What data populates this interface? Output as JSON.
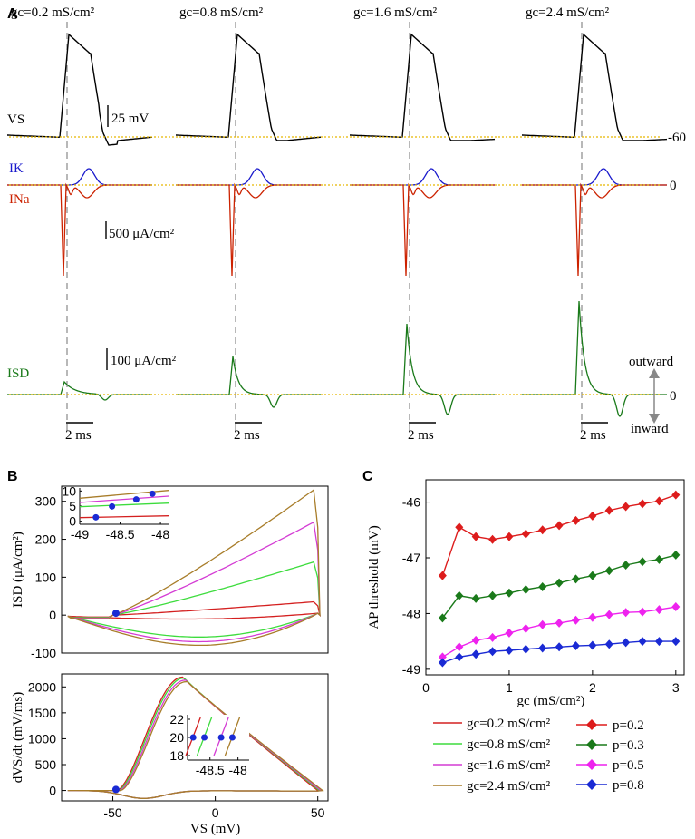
{
  "panel_labels": {
    "a": "A",
    "b": "B",
    "c": "C"
  },
  "panelA": {
    "conditions": [
      {
        "gc": 0.2,
        "title": "gc=0.2 mS/cm²"
      },
      {
        "gc": 0.8,
        "title": "gc=0.8 mS/cm²"
      },
      {
        "gc": 1.6,
        "title": "gc=1.6 mS/cm²"
      },
      {
        "gc": 2.4,
        "title": "gc=2.4 mS/cm²"
      }
    ],
    "trace_labels": {
      "vs": "VS",
      "ik": "IK",
      "ina": "INa",
      "isd": "ISD"
    },
    "scalebars": {
      "voltage": "25 mV",
      "current_ion": "500 μA/cm²",
      "current_sd": "100 μA/cm²",
      "time": "2 ms"
    },
    "reference_values": {
      "vs": "-60",
      "ik_ina": "0",
      "isd": "0"
    },
    "direction": {
      "outward": "outward",
      "inward": "inward"
    },
    "colors": {
      "vs": "#000000",
      "ik": "#1a1acc",
      "ina": "#cc2200",
      "isd": "#1a7a1a",
      "ref": "#e8b800",
      "dash": "#888888"
    }
  },
  "chart_data": [
    {
      "id": "B_top",
      "type": "line",
      "xlabel": "",
      "ylabel": "ISD (μA/cm²)",
      "xlim": [
        -75,
        55
      ],
      "ylim": [
        -100,
        340
      ],
      "yticks": [
        -100,
        0,
        100,
        200,
        300
      ],
      "series": [
        {
          "name": "gc=0.2 mS/cm²",
          "color": "#d42020",
          "peak": 35,
          "trough": -12
        },
        {
          "name": "gc=0.8 mS/cm²",
          "color": "#3ddc3d",
          "peak": 140,
          "trough": -62
        },
        {
          "name": "gc=1.6 mS/cm²",
          "color": "#d43cd4",
          "peak": 245,
          "trough": -75
        },
        {
          "name": "gc=2.4 mS/cm²",
          "color": "#a87d2a",
          "peak": 330,
          "trough": -85
        }
      ],
      "threshold_points": {
        "color": "#1a2ad4",
        "x": [
          -48.8,
          -48.6,
          -48.3,
          -48.1
        ],
        "y": [
          2,
          4,
          7,
          9
        ]
      },
      "inset": {
        "xlim": [
          -49,
          -47.9
        ],
        "ylim": [
          -1,
          11
        ],
        "xticks": [
          -49,
          -48.5,
          -48
        ],
        "yticks": [
          0,
          5,
          10
        ],
        "xticklabels": [
          "-49",
          "-48.5",
          "-48"
        ]
      }
    },
    {
      "id": "B_bottom",
      "type": "line",
      "xlabel": "VS (mV)",
      "ylabel": "dVS/dt (mV/ms)",
      "xlim": [
        -75,
        55
      ],
      "ylim": [
        -200,
        2250
      ],
      "xticks": [
        -50,
        0,
        50
      ],
      "yticks": [
        0,
        500,
        1000,
        1500,
        2000
      ],
      "series": [
        {
          "name": "gc=0.2 mS/cm²",
          "color": "#d42020",
          "peak": 2190
        },
        {
          "name": "gc=0.8 mS/cm²",
          "color": "#3ddc3d",
          "peak": 2170
        },
        {
          "name": "gc=1.6 mS/cm²",
          "color": "#d43cd4",
          "peak": 2130
        },
        {
          "name": "gc=2.4 mS/cm²",
          "color": "#a87d2a",
          "peak": 2100
        }
      ],
      "threshold_points": {
        "color": "#1a2ad4",
        "x": [
          -48.8,
          -48.6,
          -48.3,
          -48.1
        ],
        "y": [
          20,
          20,
          20,
          20
        ]
      },
      "inset": {
        "xlim": [
          -48.9,
          -47.8
        ],
        "ylim": [
          17.5,
          22.5
        ],
        "xticks": [
          -48.5,
          -48
        ],
        "yticks": [
          18,
          20,
          22
        ],
        "xticklabels": [
          "-48.5",
          "-48"
        ]
      }
    },
    {
      "id": "C",
      "type": "line",
      "xlabel": "gc (mS/cm²)",
      "ylabel": "AP threshold (mV)",
      "xlim": [
        0,
        3.1
      ],
      "ylim": [
        -49.1,
        -45.6
      ],
      "xticks": [
        0,
        1,
        2,
        3
      ],
      "yticks": [
        -49,
        -48,
        -47,
        -46
      ],
      "x": [
        0.2,
        0.4,
        0.6,
        0.8,
        1.0,
        1.2,
        1.4,
        1.6,
        1.8,
        2.0,
        2.2,
        2.4,
        2.6,
        2.8,
        3.0
      ],
      "series": [
        {
          "name": "p=0.2",
          "color": "#dd1c1c",
          "values": [
            -47.32,
            -46.45,
            -46.62,
            -46.67,
            -46.62,
            -46.57,
            -46.5,
            -46.42,
            -46.33,
            -46.25,
            -46.15,
            -46.08,
            -46.03,
            -45.98,
            -45.87
          ]
        },
        {
          "name": "p=0.3",
          "color": "#1a7a1a",
          "values": [
            -48.08,
            -47.68,
            -47.73,
            -47.68,
            -47.63,
            -47.57,
            -47.52,
            -47.45,
            -47.38,
            -47.32,
            -47.23,
            -47.13,
            -47.07,
            -47.03,
            -46.95
          ]
        },
        {
          "name": "p=0.5",
          "color": "#ee22ee",
          "values": [
            -48.78,
            -48.6,
            -48.48,
            -48.43,
            -48.35,
            -48.27,
            -48.2,
            -48.17,
            -48.12,
            -48.07,
            -48.02,
            -47.98,
            -47.97,
            -47.93,
            -47.88
          ]
        },
        {
          "name": "p=0.8",
          "color": "#1a2ad4",
          "values": [
            -48.88,
            -48.78,
            -48.73,
            -48.68,
            -48.66,
            -48.64,
            -48.62,
            -48.6,
            -48.58,
            -48.57,
            -48.55,
            -48.52,
            -48.5,
            -48.5,
            -48.5
          ]
        }
      ]
    }
  ],
  "legend": {
    "gc_entries": [
      {
        "label": "gc=0.2 mS/cm²",
        "color": "#d42020"
      },
      {
        "label": "gc=0.8 mS/cm²",
        "color": "#3ddc3d"
      },
      {
        "label": "gc=1.6 mS/cm²",
        "color": "#d43cd4"
      },
      {
        "label": "gc=2.4 mS/cm²",
        "color": "#a87d2a"
      }
    ],
    "p_entries": [
      {
        "label": "p=0.2",
        "color": "#dd1c1c"
      },
      {
        "label": "p=0.3",
        "color": "#1a7a1a"
      },
      {
        "label": "p=0.5",
        "color": "#ee22ee"
      },
      {
        "label": "p=0.8",
        "color": "#1a2ad4"
      }
    ]
  }
}
